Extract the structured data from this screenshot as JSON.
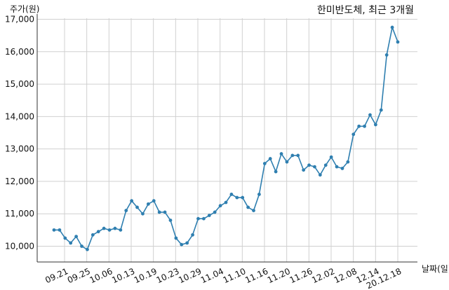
{
  "chart_data": {
    "type": "line",
    "title": "한미반도체, 최근 3개월",
    "ylabel": "주가(원)",
    "xlabel": "날짜(일)",
    "ylim": [
      9600,
      17100
    ],
    "yticks": [
      10000,
      11000,
      12000,
      13000,
      14000,
      15000,
      16000,
      17000
    ],
    "ytick_labels": [
      "10,000",
      "11,000",
      "12,000",
      "13,000",
      "14,000",
      "15,000",
      "16,000",
      "17,000"
    ],
    "xtick_labels": [
      "09.21",
      "09.25",
      "10.06",
      "10.13",
      "10.19",
      "10.23",
      "10.29",
      "11.04",
      "11.10",
      "11.16",
      "11.20",
      "11.26",
      "12.02",
      "12.08",
      "12.14",
      "20.12.18"
    ],
    "grid": true,
    "series": [
      {
        "color": "#2f7fb0",
        "values": [
          10500,
          10500,
          10250,
          10100,
          10300,
          10000,
          9900,
          10350,
          10450,
          10550,
          10500,
          10550,
          10500,
          11100,
          11400,
          11200,
          11000,
          11300,
          11400,
          11050,
          11050,
          10800,
          10250,
          10050,
          10100,
          10350,
          10850,
          10850,
          10950,
          11050,
          11250,
          11350,
          11600,
          11500,
          11500,
          11200,
          11100,
          11600,
          12550,
          12700,
          12300,
          12850,
          12600,
          12800,
          12800,
          12350,
          12500,
          12450,
          12200,
          12500,
          12750,
          12450,
          12400,
          12600,
          13450,
          13700,
          13700,
          14050,
          13750,
          14200,
          15900,
          16750,
          16300
        ]
      }
    ]
  }
}
